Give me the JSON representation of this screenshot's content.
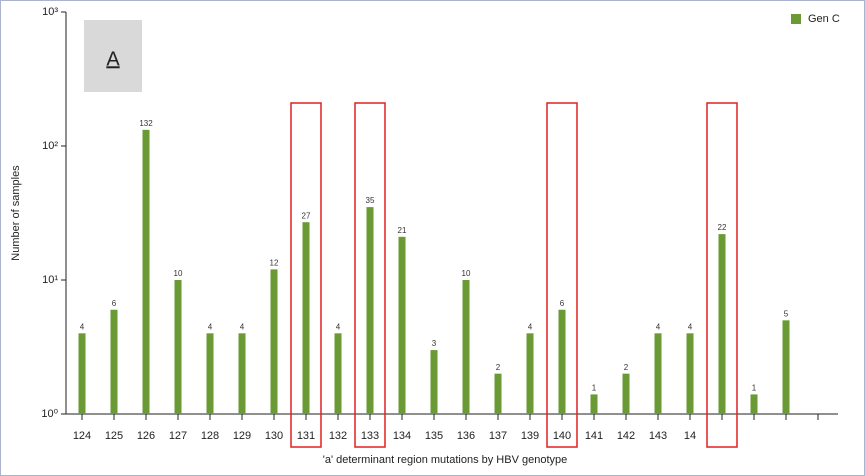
{
  "chart_data": {
    "type": "bar",
    "panel_label": "A",
    "x_label": "'a' determinant region mutations by HBV genotype",
    "y_label": "Number of samples",
    "categories": [
      "124",
      "125",
      "126",
      "127",
      "128",
      "129",
      "130",
      "131",
      "132",
      "133",
      "134",
      "135",
      "136",
      "137",
      "139",
      "140",
      "141",
      "142",
      "143",
      "14",
      null,
      null,
      null,
      null
    ],
    "series": [
      {
        "name": "Gen C",
        "color": "#6a9a34",
        "values": [
          4,
          6,
          132,
          10,
          4,
          4,
          12,
          27,
          4,
          35,
          21,
          3,
          10,
          2,
          4,
          6,
          1.4,
          2,
          4,
          4,
          22,
          1.4,
          5,
          null
        ],
        "value_labels": [
          "4",
          "6",
          "132",
          "10",
          "4",
          "4",
          "12",
          "27",
          "4",
          "35",
          "21",
          "3",
          "10",
          "2",
          "4",
          "6",
          "1",
          "2",
          "4",
          "4",
          "22",
          "1",
          "5",
          null
        ]
      }
    ],
    "log_scale": true,
    "ylim": [
      1,
      1000
    ],
    "yticks": [
      {
        "value": 1,
        "label": "10⁰"
      },
      {
        "value": 10,
        "label": "10¹"
      },
      {
        "value": 100,
        "label": "10²"
      },
      {
        "value": 1000,
        "label": "10³"
      }
    ],
    "legend_position": "upper right"
  }
}
